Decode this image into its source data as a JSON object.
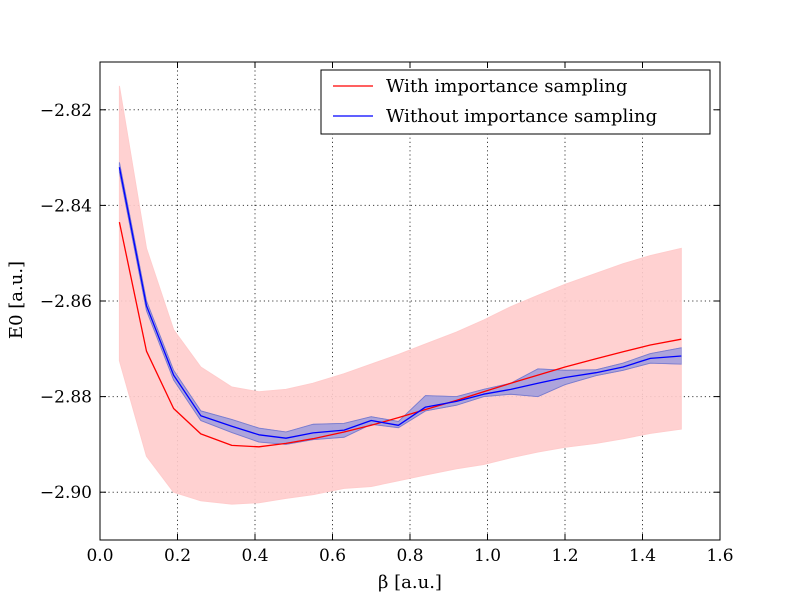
{
  "chart_data": {
    "type": "line",
    "title": "",
    "xlabel": "β [a.u.]",
    "ylabel": "E0 [a.u.]",
    "xlim": [
      0.0,
      1.6
    ],
    "ylim": [
      -2.91,
      -2.81
    ],
    "grid": true,
    "legend_position": "top-right",
    "x_ticks": [
      "0.0",
      "0.2",
      "0.4",
      "0.6",
      "0.8",
      "1.0",
      "1.2",
      "1.4",
      "1.6"
    ],
    "y_ticks": [
      "−2.82",
      "−2.84",
      "−2.86",
      "−2.88",
      "−2.90"
    ],
    "series": [
      {
        "name": "With importance sampling",
        "color": "#ff0000",
        "band_color": "#ffcccc",
        "x": [
          0.05,
          0.12,
          0.19,
          0.26,
          0.34,
          0.41,
          0.48,
          0.55,
          0.63,
          0.7,
          0.77,
          0.84,
          0.92,
          0.99,
          1.06,
          1.13,
          1.2,
          1.28,
          1.35,
          1.42,
          1.5
        ],
        "y": [
          -2.8435,
          -2.8705,
          -2.8825,
          -2.8878,
          -2.8902,
          -2.8905,
          -2.8898,
          -2.8888,
          -2.8874,
          -2.886,
          -2.8844,
          -2.8827,
          -2.8808,
          -2.879,
          -2.8772,
          -2.8755,
          -2.8738,
          -2.8721,
          -2.8706,
          -2.8692,
          -2.868
        ],
        "lower": [
          -2.8725,
          -2.8925,
          -2.9,
          -2.9018,
          -2.9025,
          -2.9022,
          -2.9013,
          -2.9005,
          -2.8992,
          -2.8988,
          -2.8976,
          -2.8964,
          -2.8951,
          -2.8942,
          -2.8928,
          -2.8916,
          -2.8906,
          -2.8898,
          -2.8888,
          -2.8877,
          -2.8868
        ],
        "upper": [
          -2.815,
          -2.849,
          -2.866,
          -2.8738,
          -2.878,
          -2.879,
          -2.8785,
          -2.8772,
          -2.8752,
          -2.8732,
          -2.8712,
          -2.869,
          -2.8665,
          -2.864,
          -2.8612,
          -2.8588,
          -2.8565,
          -2.8542,
          -2.8522,
          -2.8505,
          -2.849
        ]
      },
      {
        "name": "Without importance sampling",
        "color": "#0000ff",
        "band_color": "#9999dd",
        "x": [
          0.05,
          0.12,
          0.19,
          0.26,
          0.34,
          0.41,
          0.48,
          0.55,
          0.63,
          0.7,
          0.77,
          0.84,
          0.92,
          0.99,
          1.06,
          1.13,
          1.2,
          1.28,
          1.35,
          1.42,
          1.5
        ],
        "y": [
          -2.832,
          -2.861,
          -2.8755,
          -2.884,
          -2.8862,
          -2.888,
          -2.8887,
          -2.8876,
          -2.887,
          -2.885,
          -2.886,
          -2.8822,
          -2.881,
          -2.8795,
          -2.8785,
          -2.8772,
          -2.876,
          -2.875,
          -2.8738,
          -2.872,
          -2.8715
        ],
        "lower": [
          -2.833,
          -2.862,
          -2.8765,
          -2.885,
          -2.8875,
          -2.8895,
          -2.89,
          -2.889,
          -2.8885,
          -2.8858,
          -2.8865,
          -2.883,
          -2.8818,
          -2.88,
          -2.8795,
          -2.88,
          -2.8775,
          -2.8756,
          -2.8745,
          -2.873,
          -2.8732
        ],
        "upper": [
          -2.831,
          -2.86,
          -2.8745,
          -2.883,
          -2.8848,
          -2.8866,
          -2.8874,
          -2.8858,
          -2.8856,
          -2.8842,
          -2.8852,
          -2.8798,
          -2.88,
          -2.8785,
          -2.8772,
          -2.8742,
          -2.8745,
          -2.8744,
          -2.873,
          -2.871,
          -2.8698
        ]
      }
    ]
  }
}
